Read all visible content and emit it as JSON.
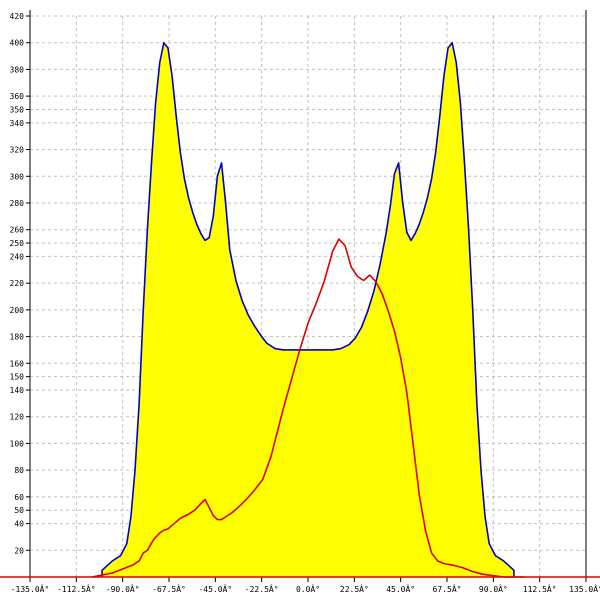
{
  "chart_data": {
    "type": "area",
    "title": "",
    "xlabel": "",
    "ylabel": "",
    "grid": true,
    "legend": "none",
    "xlim": [
      -135,
      135
    ],
    "ylim": [
      0,
      420
    ],
    "x_tick_labels": [
      "-135.0Â°",
      "-112.5Â°",
      "-90.0Â°",
      "-67.5Â°",
      "-45.0Â°",
      "-22.5Â°",
      "0.0Â°",
      "22.5Â°",
      "45.0Â°",
      "67.5Â°",
      "90.0Â°",
      "112.5Â°",
      "135.0Â°"
    ],
    "x_ticks": [
      -135,
      -112.5,
      -90,
      -67.5,
      -45,
      -22.5,
      0,
      22.5,
      45,
      67.5,
      90,
      112.5,
      135
    ],
    "y_ticks": [
      20,
      40,
      50,
      60,
      80,
      100,
      120,
      140,
      150,
      160,
      180,
      200,
      220,
      240,
      250,
      260,
      280,
      300,
      320,
      340,
      350,
      360,
      380,
      400,
      420
    ],
    "y_tick_labels": [
      "20",
      "40",
      "50",
      "60",
      "80",
      "100",
      "120",
      "140",
      "150",
      "160",
      "180",
      "200",
      "220",
      "240",
      "250",
      "260",
      "280",
      "300",
      "320",
      "340",
      "350",
      "360",
      "380",
      "400",
      "420"
    ],
    "series": [
      {
        "color": "#0000cc",
        "fill": "#ffff00",
        "x": [
          -100,
          -100,
          -95,
          -91,
          -88,
          -86,
          -84,
          -82,
          -80,
          -78,
          -76,
          -74,
          -72,
          -70,
          -68,
          -66,
          -64,
          -62,
          -60,
          -58,
          -56,
          -54,
          -52,
          -50,
          -48,
          -46,
          -44,
          -42,
          -40,
          -38,
          -35,
          -32,
          -29,
          -26,
          -23,
          -20,
          -16,
          -12,
          -6,
          0,
          6,
          12,
          16,
          20,
          23,
          26,
          29,
          32,
          35,
          38,
          40,
          42,
          44,
          46,
          48,
          50,
          52,
          54,
          56,
          58,
          60,
          62,
          64,
          66,
          68,
          70,
          72,
          74,
          76,
          78,
          80,
          82,
          84,
          86,
          88,
          91,
          95,
          100,
          100
        ],
        "values": [
          0,
          5,
          12,
          16,
          25,
          45,
          80,
          130,
          200,
          260,
          310,
          355,
          385,
          400,
          396,
          375,
          345,
          318,
          298,
          284,
          273,
          264,
          257,
          252,
          254,
          270,
          300,
          310,
          280,
          245,
          222,
          207,
          196,
          188,
          181,
          175,
          171,
          170,
          170,
          170,
          170,
          170,
          171,
          174,
          179,
          187,
          199,
          214,
          234,
          258,
          278,
          302,
          310,
          280,
          258,
          252,
          257,
          264,
          273,
          284,
          298,
          318,
          345,
          375,
          396,
          400,
          385,
          355,
          310,
          260,
          200,
          130,
          80,
          45,
          25,
          16,
          12,
          5,
          0
        ]
      },
      {
        "color": "#dd0000",
        "x": [
          -105,
          -95,
          -90,
          -85,
          -82,
          -80,
          -78,
          -75,
          -72,
          -70,
          -68,
          -65,
          -62,
          -58,
          -55,
          -52,
          -50,
          -48,
          -46,
          -44,
          -42,
          -40,
          -37,
          -34,
          -30,
          -26,
          -22,
          -18,
          -15,
          -12,
          -8,
          -4,
          0,
          4,
          8,
          12,
          15,
          18,
          21,
          24,
          27,
          30,
          33,
          36,
          39,
          42,
          45,
          48,
          51,
          54,
          57,
          60,
          63,
          66,
          70,
          75,
          80,
          85,
          90,
          95,
          100,
          105
        ],
        "values": [
          0,
          3,
          6,
          9,
          12,
          18,
          20,
          28,
          33,
          35,
          36,
          40,
          44,
          47,
          50,
          55,
          58,
          52,
          46,
          43,
          43,
          45,
          48,
          52,
          58,
          65,
          73,
          90,
          108,
          126,
          148,
          170,
          190,
          205,
          222,
          244,
          253,
          248,
          232,
          225,
          222,
          226,
          221,
          212,
          199,
          184,
          164,
          138,
          100,
          62,
          35,
          18,
          12,
          10,
          9,
          7,
          4,
          2,
          1,
          0,
          0,
          0
        ]
      }
    ]
  }
}
